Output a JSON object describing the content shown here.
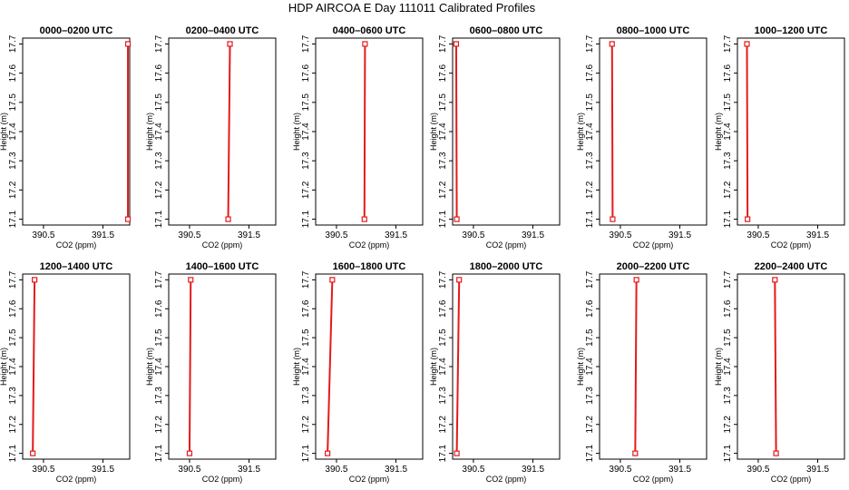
{
  "title": "HDP AIRCOA E  Day 111011  Calibrated Profiles",
  "colors": {
    "series": "#e31a1c",
    "axis": "#000000"
  },
  "chart_data": {
    "type": "line",
    "xlabel": "CO2 (ppm)",
    "ylabel": "Height (m)",
    "xlim": [
      390.15,
      391.95
    ],
    "ylim": [
      17.08,
      17.72
    ],
    "xticks": [
      390.5,
      391.5
    ],
    "yticks": [
      17.1,
      17.2,
      17.3,
      17.4,
      17.5,
      17.6,
      17.7
    ],
    "grid": false,
    "panels": [
      {
        "title": "0000–0200 UTC",
        "x": [
          391.92,
          391.92
        ],
        "y": [
          17.1,
          17.7
        ]
      },
      {
        "title": "0200–0400 UTC",
        "x": [
          391.15,
          391.18
        ],
        "y": [
          17.1,
          17.7
        ]
      },
      {
        "title": "0400–0600 UTC",
        "x": [
          390.97,
          390.98
        ],
        "y": [
          17.1,
          17.7
        ]
      },
      {
        "title": "0600–0800 UTC",
        "x": [
          390.22,
          390.21
        ],
        "y": [
          17.1,
          17.7
        ]
      },
      {
        "title": "0800–1000 UTC",
        "x": [
          390.37,
          390.36
        ],
        "y": [
          17.1,
          17.7
        ]
      },
      {
        "title": "1000–1200 UTC",
        "x": [
          390.32,
          390.31
        ],
        "y": [
          17.1,
          17.7
        ]
      },
      {
        "title": "1200–1400 UTC",
        "x": [
          390.32,
          390.35
        ],
        "y": [
          17.1,
          17.7
        ]
      },
      {
        "title": "1400–1600 UTC",
        "x": [
          390.5,
          390.52
        ],
        "y": [
          17.1,
          17.7
        ]
      },
      {
        "title": "1600–1800 UTC",
        "x": [
          390.35,
          390.43
        ],
        "y": [
          17.1,
          17.7
        ]
      },
      {
        "title": "1800–2000 UTC",
        "x": [
          390.22,
          390.26
        ],
        "y": [
          17.1,
          17.7
        ]
      },
      {
        "title": "2000–2200 UTC",
        "x": [
          390.75,
          390.77
        ],
        "y": [
          17.1,
          17.7
        ]
      },
      {
        "title": "2200–2400 UTC",
        "x": [
          390.8,
          390.78
        ],
        "y": [
          17.1,
          17.7
        ]
      }
    ]
  }
}
